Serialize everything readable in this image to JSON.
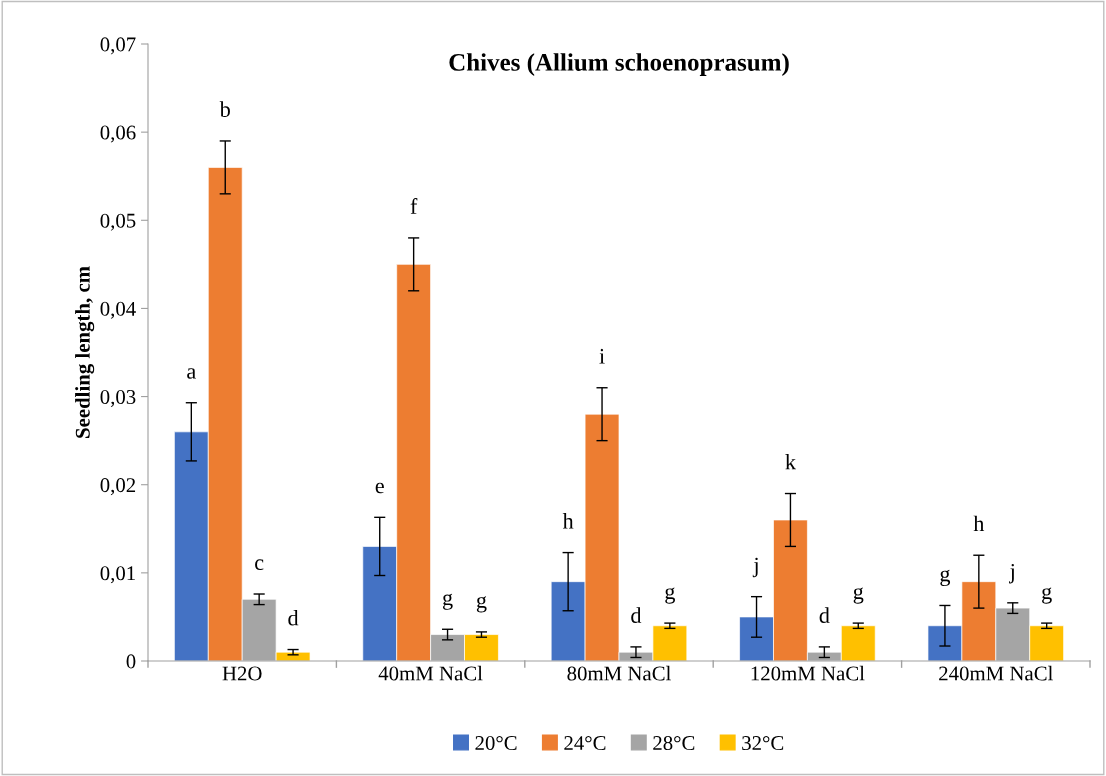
{
  "chart_data": {
    "type": "bar",
    "title": "Chives (Allium schoenoprasum)",
    "ylabel": "Seedling length, cm",
    "categories": [
      "H2O",
      "40mM NaCl",
      "80mM NaCl",
      "120mM NaCl",
      "240mM NaCl"
    ],
    "series": [
      {
        "name": "20°C",
        "color": "#4472c4",
        "values": [
          0.026,
          0.013,
          0.009,
          0.005,
          0.004
        ],
        "errors": [
          0.0033,
          0.0033,
          0.0033,
          0.0023,
          0.0023
        ],
        "value_labels": [
          "a",
          "e",
          "h",
          "j",
          "g"
        ]
      },
      {
        "name": "24°C",
        "color": "#ed7d31",
        "values": [
          0.056,
          0.045,
          0.028,
          0.016,
          0.009
        ],
        "errors": [
          0.003,
          0.003,
          0.003,
          0.003,
          0.003
        ],
        "value_labels": [
          "b",
          "f",
          "i",
          "k",
          "h"
        ]
      },
      {
        "name": "28°C",
        "color": "#a5a5a5",
        "values": [
          0.007,
          0.003,
          0.001,
          0.001,
          0.006
        ],
        "errors": [
          0.0006,
          0.0006,
          0.0006,
          0.0006,
          0.0006
        ],
        "value_labels": [
          "c",
          "g",
          "d",
          "d",
          "j"
        ]
      },
      {
        "name": "32°C",
        "color": "#ffc000",
        "values": [
          0.001,
          0.003,
          0.004,
          0.004,
          0.004
        ],
        "errors": [
          0.0003,
          0.0003,
          0.0003,
          0.0003,
          0.0003
        ],
        "value_labels": [
          "d",
          "g",
          "g",
          "g",
          "g"
        ]
      }
    ],
    "ylim": [
      0,
      0.07
    ],
    "yticks": [
      0,
      {
        "value": 0.01,
        "label": "0,01"
      },
      {
        "value": 0.02,
        "label": "0,02"
      },
      {
        "value": 0.03,
        "label": "0,03"
      },
      {
        "value": 0.04,
        "label": "0,04"
      },
      {
        "value": 0.05,
        "label": "0,05"
      },
      {
        "value": 0.06,
        "label": "0,06"
      },
      {
        "value": 0.07,
        "label": "0,07"
      }
    ],
    "grid": false,
    "legend": "bottom"
  }
}
